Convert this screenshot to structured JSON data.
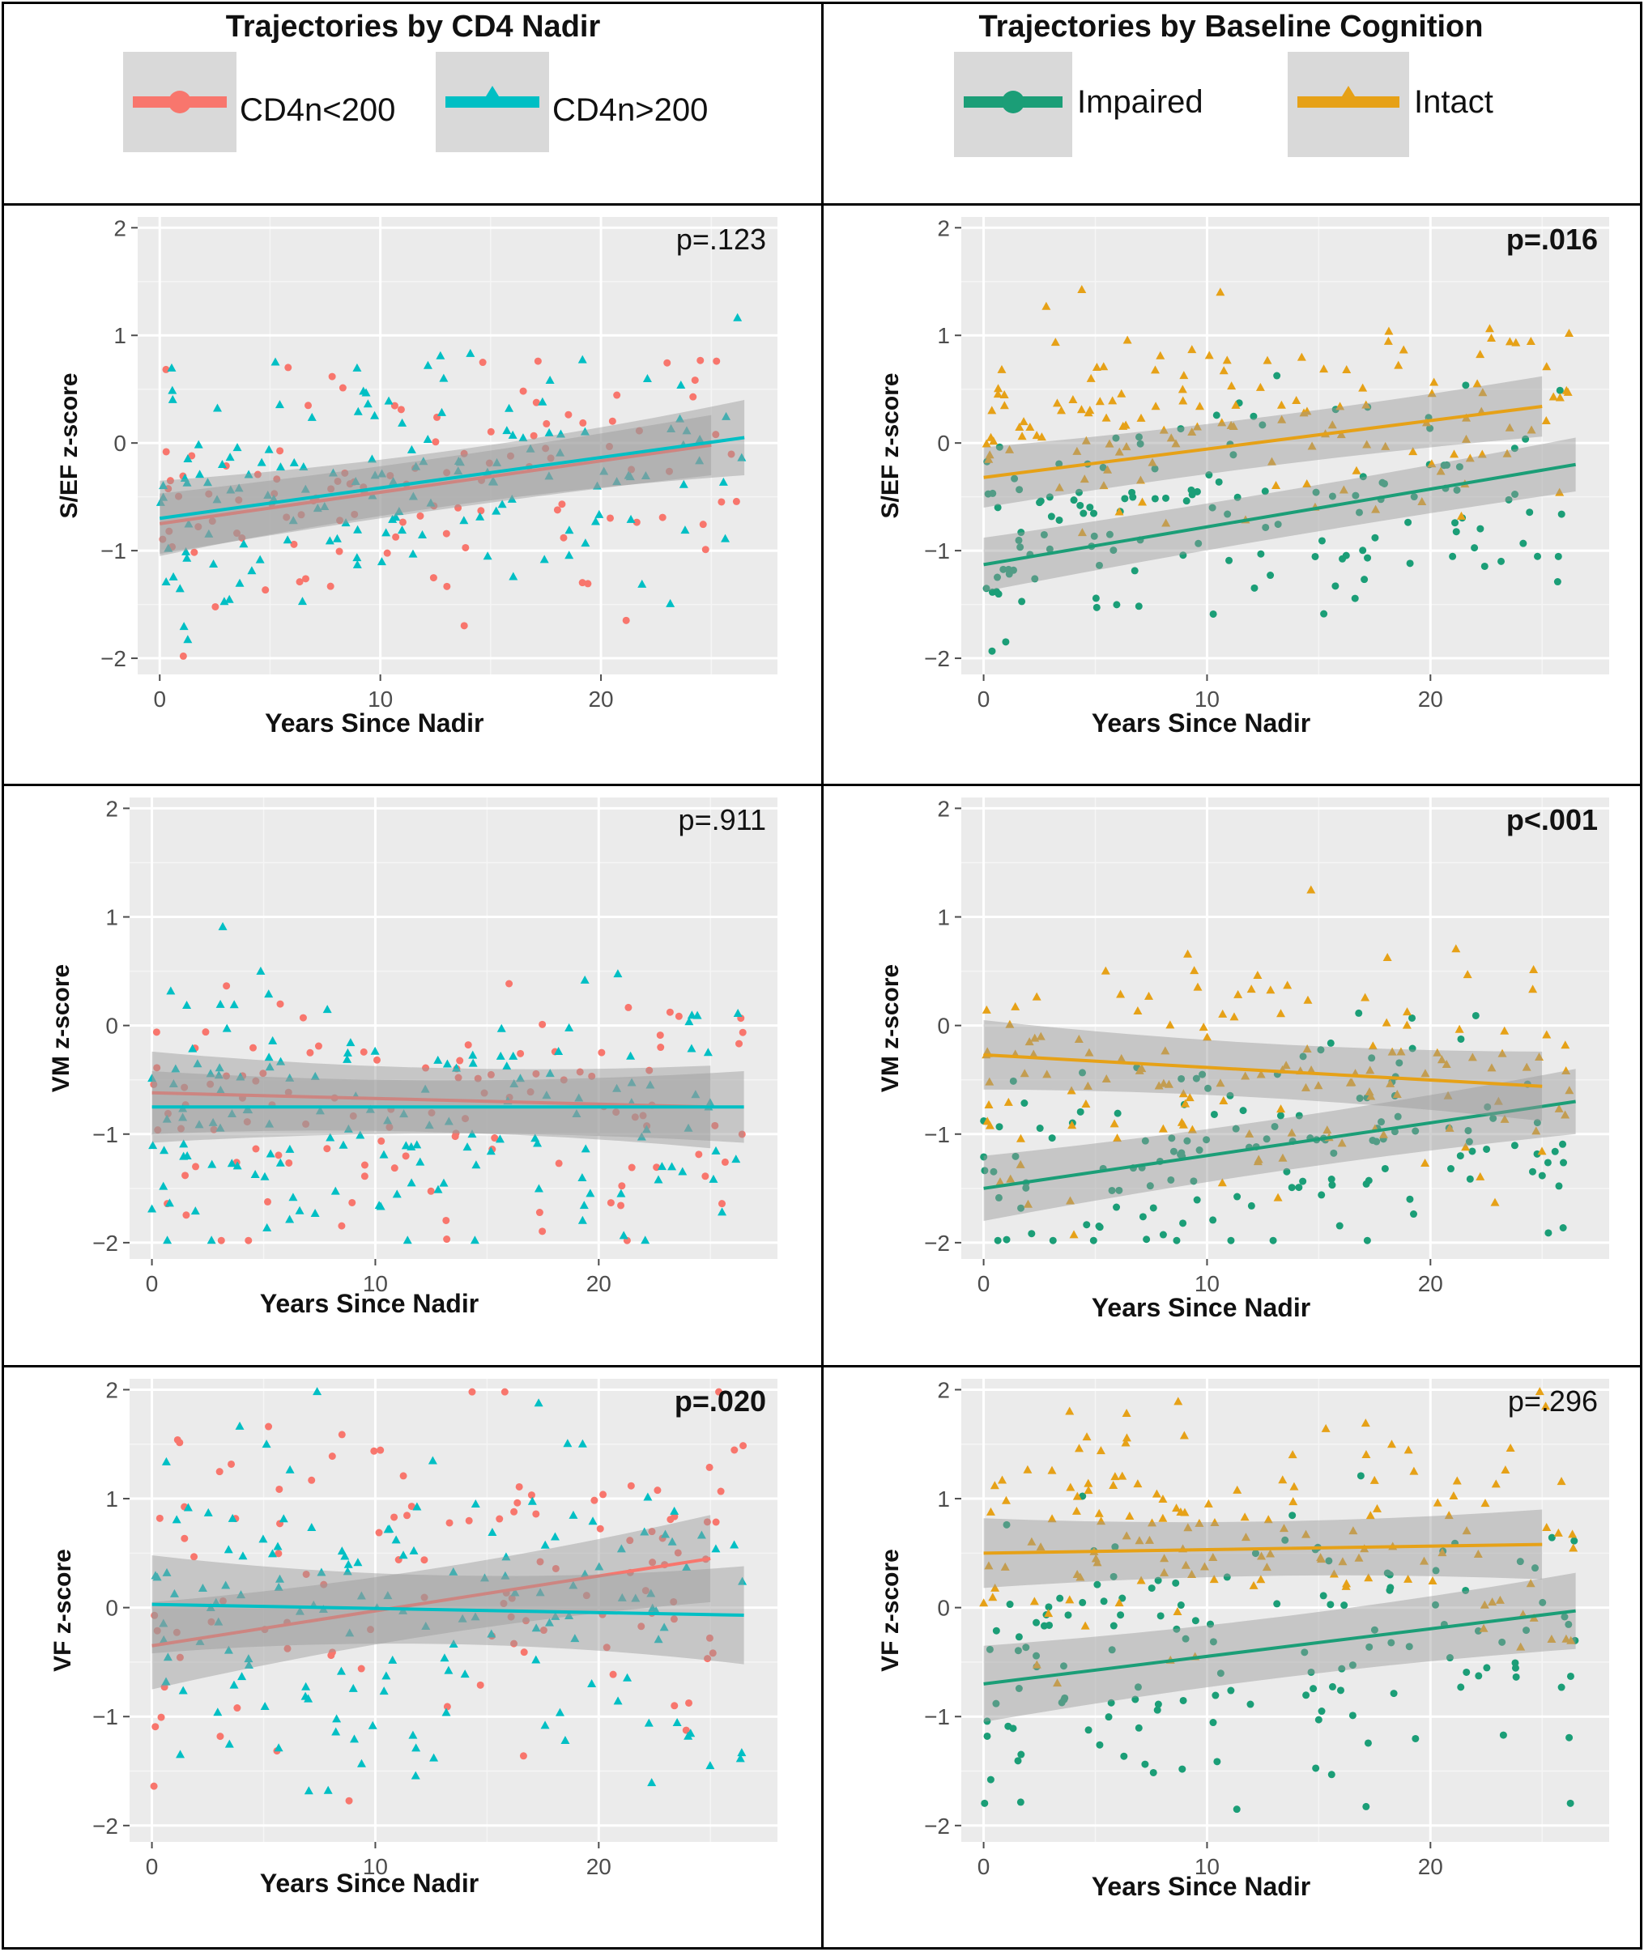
{
  "legends": [
    {
      "title": "Trajectories by CD4 Nadir",
      "entries": [
        {
          "label": "CD4n<200",
          "color": "#F8766D",
          "shape": "circle"
        },
        {
          "label": "CD4n>200",
          "color": "#00BFC4",
          "shape": "triangle"
        }
      ]
    },
    {
      "title": "Trajectories by Baseline Cognition",
      "entries": [
        {
          "label": "Impaired",
          "color": "#1B9E77",
          "shape": "circle"
        },
        {
          "label": "Intact",
          "color": "#E6A117",
          "shape": "triangle"
        }
      ]
    }
  ],
  "chart_data": [
    {
      "type": "scatter",
      "title": "",
      "xlabel": "Years Since Nadir",
      "ylabel": "S/EF z-score",
      "pvalue": "p=.123",
      "pvalue_bold": false,
      "xlim": [
        -1,
        28
      ],
      "ylim": [
        -2.15,
        2.1
      ],
      "xticks": [
        0,
        10,
        20
      ],
      "yticks": [
        -2,
        -1,
        0,
        1,
        2
      ],
      "series": [
        {
          "name": "CD4n<200",
          "seed": 11,
          "n": 110,
          "scatter_mean": -0.55,
          "scatter_sd": 0.65,
          "fit": [
            -0.75,
            -0.02
          ],
          "band": [
            0.14,
            0.28
          ]
        },
        {
          "name": "CD4n>200",
          "seed": 23,
          "n": 150,
          "scatter_mean": -0.5,
          "scatter_sd": 0.7,
          "fit": [
            -0.7,
            0.05
          ],
          "band": [
            0.1,
            0.35
          ]
        }
      ]
    },
    {
      "type": "scatter",
      "title": "",
      "xlabel": "Years Since Nadir",
      "ylabel": "S/EF z-score",
      "pvalue": "p=.016",
      "pvalue_bold": true,
      "xlim": [
        -1,
        28
      ],
      "ylim": [
        -2.15,
        2.1
      ],
      "xticks": [
        0,
        10,
        20
      ],
      "yticks": [
        -2,
        -1,
        0,
        1,
        2
      ],
      "series": [
        {
          "name": "Impaired",
          "seed": 37,
          "n": 140,
          "scatter_mean": -0.9,
          "scatter_sd": 0.55,
          "fit": [
            -1.13,
            -0.2
          ],
          "band": [
            0.12,
            0.25
          ]
        },
        {
          "name": "Intact",
          "seed": 41,
          "n": 140,
          "scatter_mean": 0.1,
          "scatter_sd": 0.55,
          "fit": [
            -0.32,
            0.34
          ],
          "band": [
            0.12,
            0.28
          ]
        }
      ]
    },
    {
      "type": "scatter",
      "title": "",
      "xlabel": "Years Since Nadir",
      "ylabel": "VM z-score",
      "pvalue": "p=.911",
      "pvalue_bold": false,
      "xlim": [
        -1,
        28
      ],
      "ylim": [
        -2.15,
        2.1
      ],
      "xticks": [
        0,
        10,
        20
      ],
      "yticks": [
        -2,
        -1,
        0,
        1,
        2
      ],
      "series": [
        {
          "name": "CD4n<200",
          "seed": 53,
          "n": 110,
          "scatter_mean": -0.75,
          "scatter_sd": 0.75,
          "fit": [
            -0.62,
            -0.75
          ],
          "band": [
            0.15,
            0.38
          ]
        },
        {
          "name": "CD4n>200",
          "seed": 67,
          "n": 150,
          "scatter_mean": -0.8,
          "scatter_sd": 0.75,
          "fit": [
            -0.75,
            -0.75
          ],
          "band": [
            0.1,
            0.33
          ]
        }
      ]
    },
    {
      "type": "scatter",
      "title": "",
      "xlabel": "Years Since Nadir",
      "ylabel": "VM z-score",
      "pvalue": "p<.001",
      "pvalue_bold": true,
      "xlim": [
        -1,
        28
      ],
      "ylim": [
        -2.15,
        2.1
      ],
      "xticks": [
        0,
        10,
        20
      ],
      "yticks": [
        -2,
        -1,
        0,
        1,
        2
      ],
      "series": [
        {
          "name": "Impaired",
          "seed": 71,
          "n": 140,
          "scatter_mean": -1.35,
          "scatter_sd": 0.55,
          "fit": [
            -1.5,
            -0.7
          ],
          "band": [
            0.12,
            0.3
          ]
        },
        {
          "name": "Intact",
          "seed": 83,
          "n": 140,
          "scatter_mean": -0.3,
          "scatter_sd": 0.7,
          "fit": [
            -0.27,
            -0.56
          ],
          "band": [
            0.12,
            0.32
          ]
        }
      ]
    },
    {
      "type": "scatter",
      "title": "",
      "xlabel": "Years Since Nadir",
      "ylabel": "VF z-score",
      "pvalue": "p=.020",
      "pvalue_bold": true,
      "xlim": [
        -1,
        28
      ],
      "ylim": [
        -2.15,
        2.1
      ],
      "xticks": [
        0,
        10,
        20
      ],
      "yticks": [
        -2,
        -1,
        0,
        1,
        2
      ],
      "series": [
        {
          "name": "CD4n<200",
          "seed": 97,
          "n": 110,
          "scatter_mean": 0.1,
          "scatter_sd": 0.95,
          "fit": [
            -0.35,
            0.45
          ],
          "band": [
            0.15,
            0.4
          ]
        },
        {
          "name": "CD4n>200",
          "seed": 101,
          "n": 150,
          "scatter_mean": 0.05,
          "scatter_sd": 0.95,
          "fit": [
            0.03,
            -0.07
          ],
          "band": [
            0.12,
            0.45
          ]
        }
      ]
    },
    {
      "type": "scatter",
      "title": "",
      "xlabel": "Years Since Nadir",
      "ylabel": "VF z-score",
      "pvalue": "p=.296",
      "pvalue_bold": false,
      "xlim": [
        -1,
        28
      ],
      "ylim": [
        -2.15,
        2.1
      ],
      "xticks": [
        0,
        10,
        20
      ],
      "yticks": [
        -2,
        -1,
        0,
        1,
        2
      ],
      "series": [
        {
          "name": "Impaired",
          "seed": 113,
          "n": 140,
          "scatter_mean": -0.55,
          "scatter_sd": 0.75,
          "fit": [
            -0.7,
            -0.03
          ],
          "band": [
            0.15,
            0.35
          ]
        },
        {
          "name": "Intact",
          "seed": 127,
          "n": 140,
          "scatter_mean": 0.7,
          "scatter_sd": 0.65,
          "fit": [
            0.5,
            0.58
          ],
          "band": [
            0.12,
            0.32
          ]
        }
      ]
    }
  ]
}
